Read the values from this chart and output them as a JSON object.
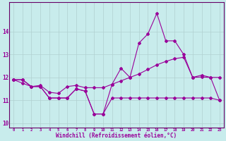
{
  "xlabel": "Windchill (Refroidissement éolien,°C)",
  "background_color": "#c8ecec",
  "grid_color": "#b0d0d0",
  "line_color": "#990099",
  "spine_color": "#660066",
  "x_hours": [
    0,
    1,
    2,
    3,
    4,
    5,
    6,
    7,
    8,
    9,
    10,
    11,
    12,
    13,
    14,
    15,
    16,
    17,
    18,
    19,
    20,
    21,
    22,
    23
  ],
  "series1": [
    11.9,
    11.9,
    11.6,
    11.6,
    11.1,
    11.1,
    11.1,
    11.5,
    11.4,
    10.4,
    10.4,
    11.7,
    12.4,
    12.0,
    13.5,
    13.9,
    14.8,
    13.6,
    13.6,
    13.0,
    12.0,
    12.1,
    12.0,
    11.0
  ],
  "series2": [
    11.9,
    11.9,
    11.6,
    11.6,
    11.1,
    11.1,
    11.1,
    11.5,
    11.4,
    10.4,
    10.4,
    11.1,
    11.1,
    11.1,
    11.1,
    11.1,
    11.1,
    11.1,
    11.1,
    11.1,
    11.1,
    11.1,
    11.1,
    11.0
  ],
  "series3": [
    11.9,
    11.75,
    11.6,
    11.65,
    11.35,
    11.3,
    11.6,
    11.65,
    11.55,
    11.55,
    11.55,
    11.7,
    11.85,
    12.0,
    12.15,
    12.35,
    12.55,
    12.7,
    12.82,
    12.88,
    12.0,
    12.02,
    12.0,
    12.0
  ],
  "ylim": [
    9.8,
    15.3
  ],
  "yticks": [
    10,
    11,
    12,
    13,
    14
  ],
  "xlim": [
    -0.5,
    23.5
  ]
}
